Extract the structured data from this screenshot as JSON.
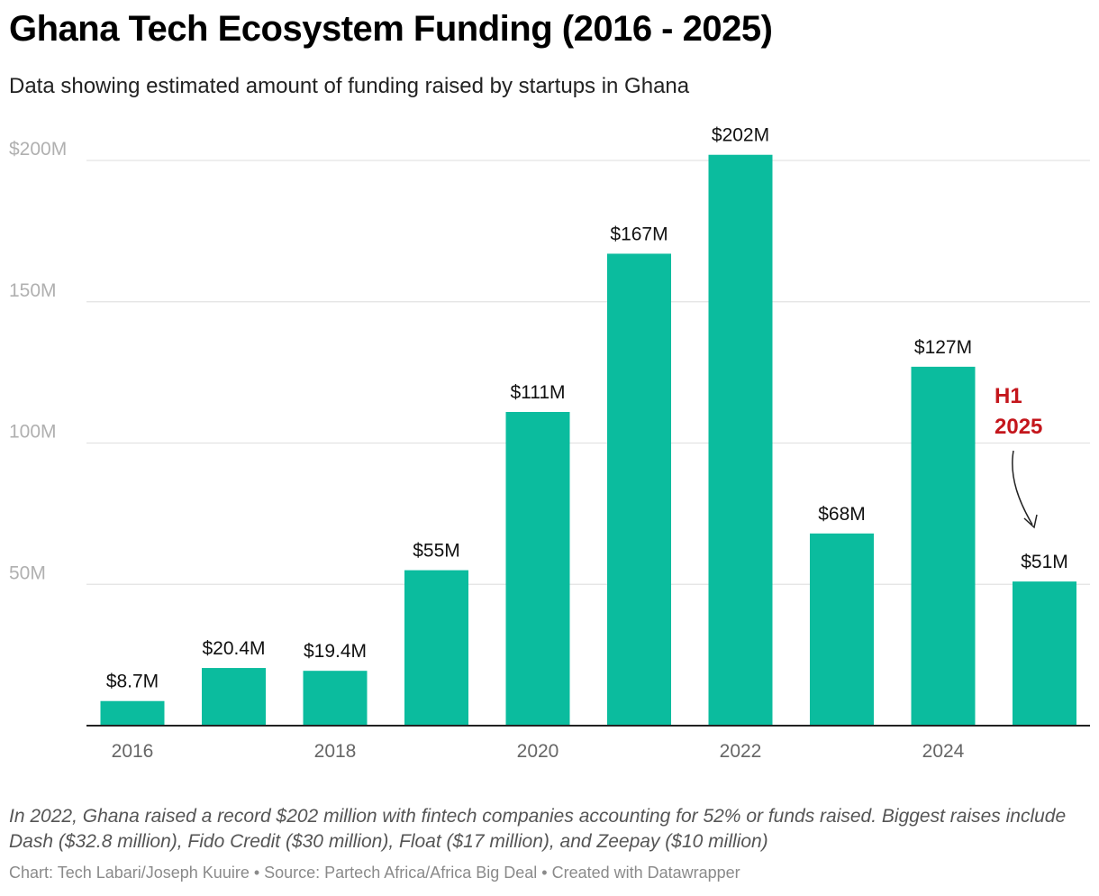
{
  "chart_data": {
    "type": "bar",
    "title": "Ghana Tech Ecosystem Funding (2016 - 2025)",
    "subtitle": "Data showing estimated amount of funding raised by startups in Ghana",
    "categories": [
      "2016",
      "2017",
      "2018",
      "2019",
      "2020",
      "2021",
      "2022",
      "2023",
      "2024",
      "2025"
    ],
    "values": [
      8.7,
      20.4,
      19.4,
      55,
      111,
      167,
      202,
      68,
      127,
      51
    ],
    "value_labels": [
      "$8.7M",
      "$20.4M",
      "$19.4M",
      "$55M",
      "$111M",
      "$167M",
      "$202M",
      "$68M",
      "$127M",
      "$51M"
    ],
    "x_tick_labels": [
      "2016",
      "",
      "2018",
      "",
      "2020",
      "",
      "2022",
      "",
      "2024",
      ""
    ],
    "y_ticks": [
      {
        "value": 50,
        "label": "50M"
      },
      {
        "value": 100,
        "label": "100M"
      },
      {
        "value": 150,
        "label": "150M"
      },
      {
        "value": 200,
        "label": "$200M"
      }
    ],
    "ylim": [
      0,
      200
    ],
    "xlabel": "",
    "ylabel": "",
    "bar_color": "#0bbc9e",
    "annotation": {
      "lines": [
        "H1",
        "2025"
      ],
      "target": "2025",
      "color": "#c4161c"
    }
  },
  "notes": "In 2022, Ghana raised a record $202 million with fintech companies accounting for 52% or funds raised. Biggest raises include Dash ($32.8 million), Fido Credit ($30 million), Float ($17 million), and Zeepay ($10 million)",
  "footer": "Chart: Tech Labari/Joseph Kuuire • Source: Partech Africa/Africa Big Deal • Created with Datawrapper"
}
